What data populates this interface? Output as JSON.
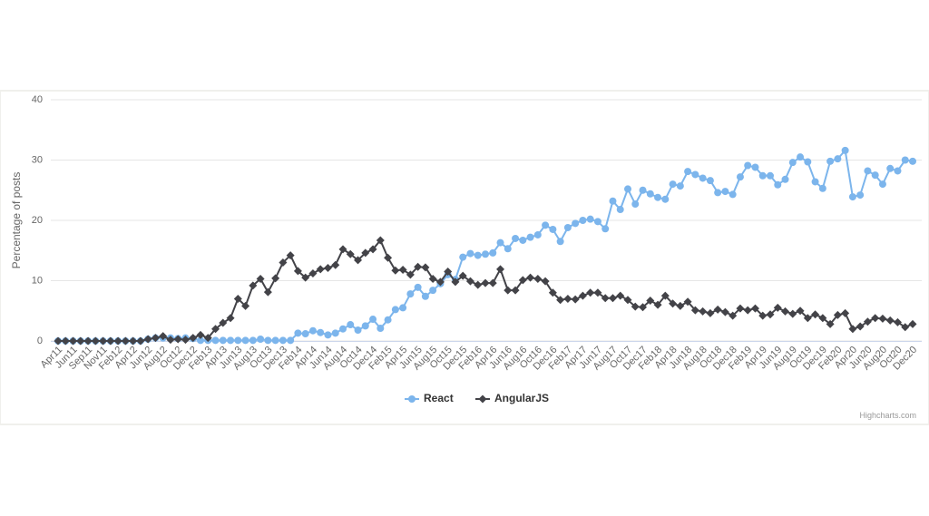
{
  "chart_data": {
    "type": "line",
    "ylabel": "Percentage of posts",
    "credits": "Highcharts.com",
    "categories": [
      "Apr11",
      null,
      "Jun11",
      null,
      "Sep11",
      null,
      "Nov11",
      null,
      "Feb12",
      null,
      "Apr12",
      null,
      "Jun12",
      null,
      "Aug12",
      null,
      "Oct12",
      null,
      "Dec12",
      null,
      "Feb13",
      null,
      "Apr13",
      null,
      "Jun13",
      null,
      "Aug13",
      null,
      "Oct13",
      null,
      "Dec13",
      null,
      "Feb14",
      null,
      "Apr14",
      null,
      "Jun14",
      null,
      "Aug14",
      null,
      "Oct14",
      null,
      "Dec14",
      null,
      "Feb15",
      null,
      "Apr15",
      null,
      "Jun15",
      null,
      "Aug15",
      null,
      "Oct15",
      null,
      "Dec15",
      null,
      "Feb16",
      null,
      "Apr16",
      null,
      "Jun16",
      null,
      "Aug16",
      null,
      "Oct16",
      null,
      "Dec16",
      null,
      "Feb17",
      null,
      "Apr17",
      null,
      "Jun17",
      null,
      "Aug17",
      null,
      "Oct17",
      null,
      "Dec17",
      null,
      "Feb18",
      null,
      "Apr18",
      null,
      "Jun18",
      null,
      "Aug18",
      null,
      "Oct18",
      null,
      "Dec18",
      null,
      "Feb19",
      null,
      "Apr19",
      null,
      "Jun19",
      null,
      "Aug19",
      null,
      "Oct19",
      null,
      "Dec19",
      null,
      "Feb20",
      null,
      "Apr20",
      null,
      "Jun20",
      null,
      "Aug20",
      null,
      "Oct20",
      null,
      "Dec20"
    ],
    "series": [
      {
        "name": "React",
        "color": "#7cb5ec",
        "marker": "circle",
        "values": [
          0,
          0,
          0,
          0,
          0,
          0,
          0,
          0,
          0,
          0,
          0,
          0,
          0.3,
          0.5,
          0.5,
          0.5,
          0.4,
          0.5,
          0.4,
          0.1,
          0.1,
          0.1,
          0.1,
          0.1,
          0.1,
          0.1,
          0.1,
          0.3,
          0.1,
          0.1,
          0.1,
          0.1,
          1.3,
          1.2,
          1.7,
          1.4,
          1.0,
          1.3,
          2.0,
          2.7,
          1.8,
          2.5,
          3.6,
          2.1,
          3.5,
          5.2,
          5.5,
          7.8,
          8.9,
          7.4,
          8.4,
          9.5,
          11.0,
          10.2,
          13.9,
          14.5,
          14.2,
          14.4,
          14.6,
          16.3,
          15.3,
          17.0,
          16.7,
          17.2,
          17.6,
          19.2,
          18.5,
          16.5,
          18.8,
          19.5,
          20.0,
          20.2,
          19.8,
          18.6,
          23.2,
          21.8,
          25.2,
          22.7,
          25.0,
          24.4,
          23.8,
          23.5,
          26.0,
          25.7,
          28.1,
          27.6,
          27.0,
          26.6,
          24.6,
          24.8,
          24.3,
          27.2,
          29.1,
          28.8,
          27.4,
          27.4,
          25.9,
          26.8,
          29.6,
          30.5,
          29.7,
          26.4,
          25.3,
          29.8,
          30.2,
          31.6,
          23.9,
          24.2,
          28.2,
          27.5,
          26.0,
          28.6,
          28.2,
          30.0,
          29.8
        ]
      },
      {
        "name": "AngularJS",
        "color": "#434348",
        "marker": "diamond",
        "values": [
          0,
          0,
          0,
          0,
          0,
          0,
          0,
          0,
          0,
          0,
          0,
          0,
          0.3,
          0.5,
          0.8,
          0.2,
          0.3,
          0.2,
          0.5,
          1.0,
          0.5,
          2.0,
          3.0,
          3.8,
          7.0,
          5.8,
          9.2,
          10.3,
          8.1,
          10.4,
          13.0,
          14.2,
          11.6,
          10.5,
          11.2,
          11.9,
          12.1,
          12.6,
          15.2,
          14.4,
          13.4,
          14.6,
          15.2,
          16.7,
          13.8,
          11.7,
          11.8,
          11.0,
          12.3,
          12.2,
          10.3,
          9.8,
          11.5,
          9.8,
          10.8,
          9.9,
          9.3,
          9.6,
          9.6,
          11.9,
          8.4,
          8.4,
          10.1,
          10.5,
          10.3,
          9.9,
          8.0,
          6.8,
          7.0,
          6.9,
          7.5,
          8.0,
          8.0,
          7.1,
          7.1,
          7.5,
          6.8,
          5.7,
          5.6,
          6.7,
          6.0,
          7.5,
          6.2,
          5.8,
          6.5,
          5.1,
          4.9,
          4.6,
          5.2,
          4.8,
          4.2,
          5.4,
          5.1,
          5.4,
          4.2,
          4.4,
          5.5,
          4.9,
          4.5,
          5.0,
          3.8,
          4.4,
          3.8,
          2.8,
          4.3,
          4.6,
          2.0,
          2.4,
          3.2,
          3.8,
          3.7,
          3.4,
          3.1,
          2.3,
          2.8
        ]
      }
    ],
    "ylim": [
      0,
      40
    ],
    "yticks": [
      0,
      10,
      20,
      30,
      40
    ],
    "grid": true,
    "legend": "bottom"
  }
}
